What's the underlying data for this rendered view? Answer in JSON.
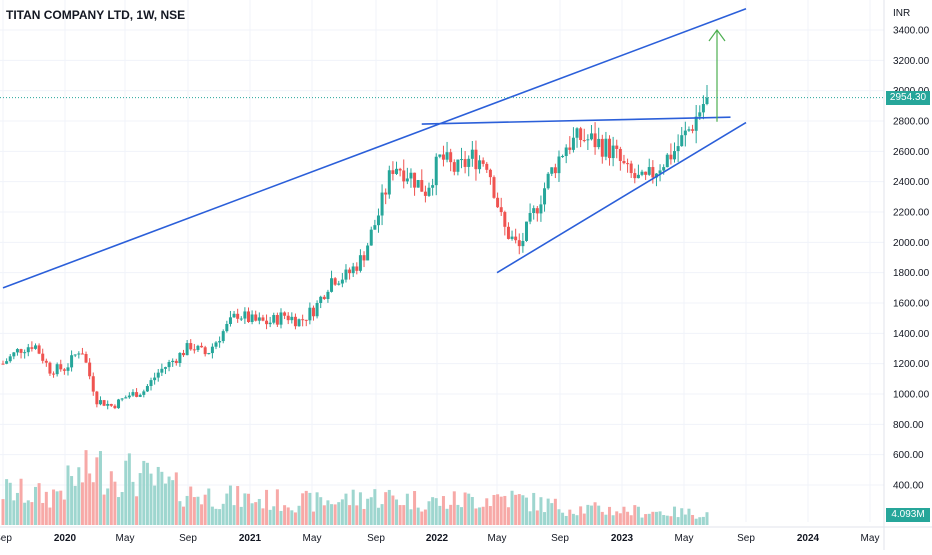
{
  "title": "TITAN COMPANY LTD, 1W, NSE",
  "currency": "INR",
  "last_price_label": "2954.30",
  "volume_label": "4.093M",
  "colors": {
    "up": "#26a69a",
    "down": "#ef5350",
    "up_vol": "#9ed6cf",
    "down_vol": "#f7a9a7",
    "trendline": "#2b5fd9",
    "target_arrow": "#4caf50",
    "price_tag": "#26a69a"
  },
  "chart_data": {
    "type": "candlestick",
    "title": "TITAN COMPANY LTD, 1W, NSE",
    "y_ticks": [
      400,
      600,
      800,
      1000,
      1200,
      1400,
      1600,
      1800,
      2000,
      2200,
      2400,
      2600,
      2800,
      3000,
      3200,
      3400
    ],
    "x_ticks": [
      "Sep",
      "2020",
      "May",
      "Sep",
      "2021",
      "May",
      "Sep",
      "2022",
      "May",
      "Sep",
      "2023",
      "May",
      "Sep",
      "2024",
      "May"
    ],
    "x_tick_dates": [
      "2019-09",
      "2020-01",
      "2020-05",
      "2020-09",
      "2021-01",
      "2021-05",
      "2021-09",
      "2022-01",
      "2022-05",
      "2022-09",
      "2023-01",
      "2023-05",
      "2023-09",
      "2024-01",
      "2024-05"
    ],
    "ylim": [
      260,
      3540
    ],
    "last_price": 2954.3,
    "price_path": [
      {
        "date": "2019-09",
        "close": 1200
      },
      {
        "date": "2019-10",
        "close": 1290
      },
      {
        "date": "2019-11",
        "close": 1330
      },
      {
        "date": "2019-12",
        "close": 1160
      },
      {
        "date": "2020-01",
        "close": 1170
      },
      {
        "date": "2020-02",
        "close": 1310
      },
      {
        "date": "2020-03",
        "close": 960
      },
      {
        "date": "2020-04",
        "close": 920
      },
      {
        "date": "2020-05",
        "close": 990
      },
      {
        "date": "2020-06",
        "close": 1020
      },
      {
        "date": "2020-07",
        "close": 1150
      },
      {
        "date": "2020-08",
        "close": 1230
      },
      {
        "date": "2020-09",
        "close": 1320
      },
      {
        "date": "2020-10",
        "close": 1260
      },
      {
        "date": "2020-11",
        "close": 1400
      },
      {
        "date": "2020-12",
        "close": 1530
      },
      {
        "date": "2021-01",
        "close": 1480
      },
      {
        "date": "2021-02",
        "close": 1470
      },
      {
        "date": "2021-03",
        "close": 1520
      },
      {
        "date": "2021-04",
        "close": 1480
      },
      {
        "date": "2021-05",
        "close": 1570
      },
      {
        "date": "2021-06",
        "close": 1760
      },
      {
        "date": "2021-07",
        "close": 1780
      },
      {
        "date": "2021-08",
        "close": 1900
      },
      {
        "date": "2021-09",
        "close": 2180
      },
      {
        "date": "2021-10",
        "close": 2520
      },
      {
        "date": "2021-11",
        "close": 2450
      },
      {
        "date": "2021-12",
        "close": 2340
      },
      {
        "date": "2022-01",
        "close": 2560
      },
      {
        "date": "2022-02",
        "close": 2470
      },
      {
        "date": "2022-03",
        "close": 2560
      },
      {
        "date": "2022-04",
        "close": 2530
      },
      {
        "date": "2022-05",
        "close": 2100
      },
      {
        "date": "2022-06",
        "close": 1960
      },
      {
        "date": "2022-07",
        "close": 2200
      },
      {
        "date": "2022-08",
        "close": 2450
      },
      {
        "date": "2022-09",
        "close": 2640
      },
      {
        "date": "2022-10",
        "close": 2690
      },
      {
        "date": "2022-11",
        "close": 2660
      },
      {
        "date": "2022-12",
        "close": 2600
      },
      {
        "date": "2023-01",
        "close": 2450
      },
      {
        "date": "2023-02",
        "close": 2390
      },
      {
        "date": "2023-03",
        "close": 2510
      },
      {
        "date": "2023-04",
        "close": 2610
      },
      {
        "date": "2023-05",
        "close": 2760
      },
      {
        "date": "2023-06",
        "close": 2954.3
      }
    ],
    "volume_path": [
      {
        "date": "2019-09",
        "vol": 0.6
      },
      {
        "date": "2019-12",
        "vol": 0.5
      },
      {
        "date": "2020-01",
        "vol": 0.7
      },
      {
        "date": "2020-03",
        "vol": 1.0
      },
      {
        "date": "2020-05",
        "vol": 0.9
      },
      {
        "date": "2020-09",
        "vol": 0.55
      },
      {
        "date": "2021-01",
        "vol": 0.45
      },
      {
        "date": "2021-05",
        "vol": 0.4
      },
      {
        "date": "2021-09",
        "vol": 0.5
      },
      {
        "date": "2022-01",
        "vol": 0.4
      },
      {
        "date": "2022-05",
        "vol": 0.5
      },
      {
        "date": "2022-09",
        "vol": 0.3
      },
      {
        "date": "2023-01",
        "vol": 0.25
      },
      {
        "date": "2023-06",
        "vol": 0.2
      }
    ],
    "annotations": {
      "upper_channel": [
        {
          "date": "2019-09",
          "price": 1700
        },
        {
          "date": "2023-09",
          "price": 3540
        }
      ],
      "resistance": [
        {
          "date": "2021-12",
          "price": 2780
        },
        {
          "date": "2023-08",
          "price": 2825
        }
      ],
      "rising_support": [
        {
          "date": "2022-05",
          "price": 1800
        },
        {
          "date": "2023-09",
          "price": 2790
        }
      ],
      "target_arrow": [
        {
          "date": "2023-06",
          "price": 2795
        },
        {
          "date": "2023-06",
          "price": 3400
        }
      ]
    }
  }
}
